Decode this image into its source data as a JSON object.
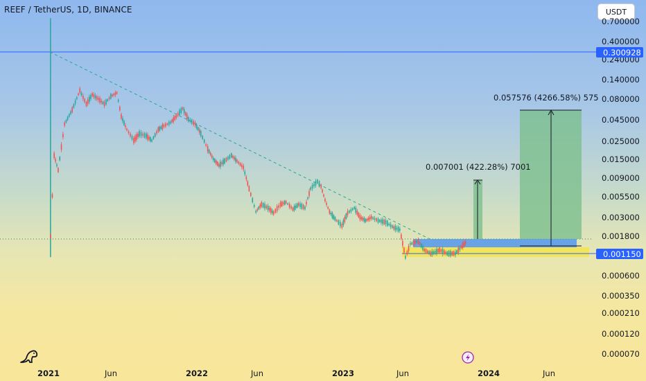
{
  "header": {
    "title": "REEF / TetherUS, 1D, BINANCE",
    "currency_button": "USDT"
  },
  "chart_data": {
    "type": "candlestick",
    "title": "REEF / TetherUS, 1D, BINANCE",
    "y_scale": "log",
    "y_ticks": [
      "0.700000",
      "0.400000",
      "0.240000",
      "0.140000",
      "0.080000",
      "0.045000",
      "0.025000",
      "0.015000",
      "0.009000",
      "0.005500",
      "0.003000",
      "0.001800",
      "0.000600",
      "0.000350",
      "0.000210",
      "0.000120",
      "0.000070"
    ],
    "x_ticks": [
      {
        "label": "2021",
        "year": true
      },
      {
        "label": "Jun",
        "year": false
      },
      {
        "label": "2022",
        "year": true
      },
      {
        "label": "Jun",
        "year": false
      },
      {
        "label": "2023",
        "year": true
      },
      {
        "label": "Jun",
        "year": false
      },
      {
        "label": "2024",
        "year": true
      },
      {
        "label": "Jun",
        "year": false
      }
    ],
    "price_labels": {
      "resistance": "0.300928",
      "current": "0.001150"
    },
    "accent_colors": {
      "resistance_line": "#2962ff",
      "current_label": "#2962ff",
      "support_zone": "#f5e44a",
      "entry_zone": "#5b9bea",
      "target_zone": "#7dbf8d",
      "candle_up": "#26a69a",
      "candle_down": "#ef5350"
    },
    "annotations": [
      {
        "text": "0.007001 (422.28%) 7001"
      },
      {
        "text": "0.057576 (4266.58%) 575"
      }
    ],
    "price_path": [
      [
        "2021-01-06",
        0.0018
      ],
      [
        "2021-01-15",
        0.012
      ],
      [
        "2021-01-25",
        0.0085
      ],
      [
        "2021-02-10",
        0.025
      ],
      [
        "2021-03-01",
        0.035
      ],
      [
        "2021-03-20",
        0.055
      ],
      [
        "2021-04-05",
        0.04
      ],
      [
        "2021-04-20",
        0.05
      ],
      [
        "2021-05-05",
        0.045
      ],
      [
        "2021-05-20",
        0.04
      ],
      [
        "2021-06-05",
        0.048
      ],
      [
        "2021-06-20",
        0.052
      ],
      [
        "2021-07-01",
        0.03
      ],
      [
        "2021-07-15",
        0.022
      ],
      [
        "2021-08-01",
        0.017
      ],
      [
        "2021-08-15",
        0.02
      ],
      [
        "2021-09-01",
        0.019
      ],
      [
        "2021-09-15",
        0.017
      ],
      [
        "2021-10-01",
        0.022
      ],
      [
        "2021-10-15",
        0.024
      ],
      [
        "2021-11-01",
        0.026
      ],
      [
        "2021-11-15",
        0.03
      ],
      [
        "2021-12-01",
        0.036
      ],
      [
        "2021-12-15",
        0.028
      ],
      [
        "2022-01-01",
        0.025
      ],
      [
        "2022-01-15",
        0.02
      ],
      [
        "2022-02-01",
        0.014
      ],
      [
        "2022-02-15",
        0.011
      ],
      [
        "2022-03-01",
        0.0095
      ],
      [
        "2022-03-15",
        0.0105
      ],
      [
        "2022-04-01",
        0.012
      ],
      [
        "2022-04-15",
        0.0105
      ],
      [
        "2022-05-01",
        0.009
      ],
      [
        "2022-05-15",
        0.0055
      ],
      [
        "2022-06-01",
        0.0032
      ],
      [
        "2022-06-15",
        0.0038
      ],
      [
        "2022-07-01",
        0.0035
      ],
      [
        "2022-07-15",
        0.0031
      ],
      [
        "2022-08-01",
        0.0038
      ],
      [
        "2022-08-15",
        0.004
      ],
      [
        "2022-09-01",
        0.0034
      ],
      [
        "2022-09-15",
        0.0038
      ],
      [
        "2022-10-01",
        0.0035
      ],
      [
        "2022-10-15",
        0.0055
      ],
      [
        "2022-11-01",
        0.0065
      ],
      [
        "2022-11-10",
        0.0058
      ],
      [
        "2022-11-20",
        0.0042
      ],
      [
        "2022-12-01",
        0.0032
      ],
      [
        "2022-12-15",
        0.0027
      ],
      [
        "2023-01-01",
        0.0023
      ],
      [
        "2023-01-15",
        0.0031
      ],
      [
        "2023-02-01",
        0.0035
      ],
      [
        "2023-02-15",
        0.0028
      ],
      [
        "2023-03-01",
        0.0026
      ],
      [
        "2023-03-15",
        0.0028
      ],
      [
        "2023-04-01",
        0.0026
      ],
      [
        "2023-04-20",
        0.0025
      ],
      [
        "2023-05-10",
        0.0022
      ],
      [
        "2023-05-25",
        0.0021
      ],
      [
        "2023-06-08",
        0.0011
      ],
      [
        "2023-06-20",
        0.0015
      ],
      [
        "2023-07-10",
        0.0016
      ],
      [
        "2023-07-25",
        0.0013
      ],
      [
        "2023-08-10",
        0.0012
      ],
      [
        "2023-09-01",
        0.0013
      ],
      [
        "2023-09-20",
        0.0012
      ],
      [
        "2023-10-10",
        0.0012
      ],
      [
        "2023-10-25",
        0.0014
      ],
      [
        "2023-11-08",
        0.0016
      ]
    ]
  }
}
